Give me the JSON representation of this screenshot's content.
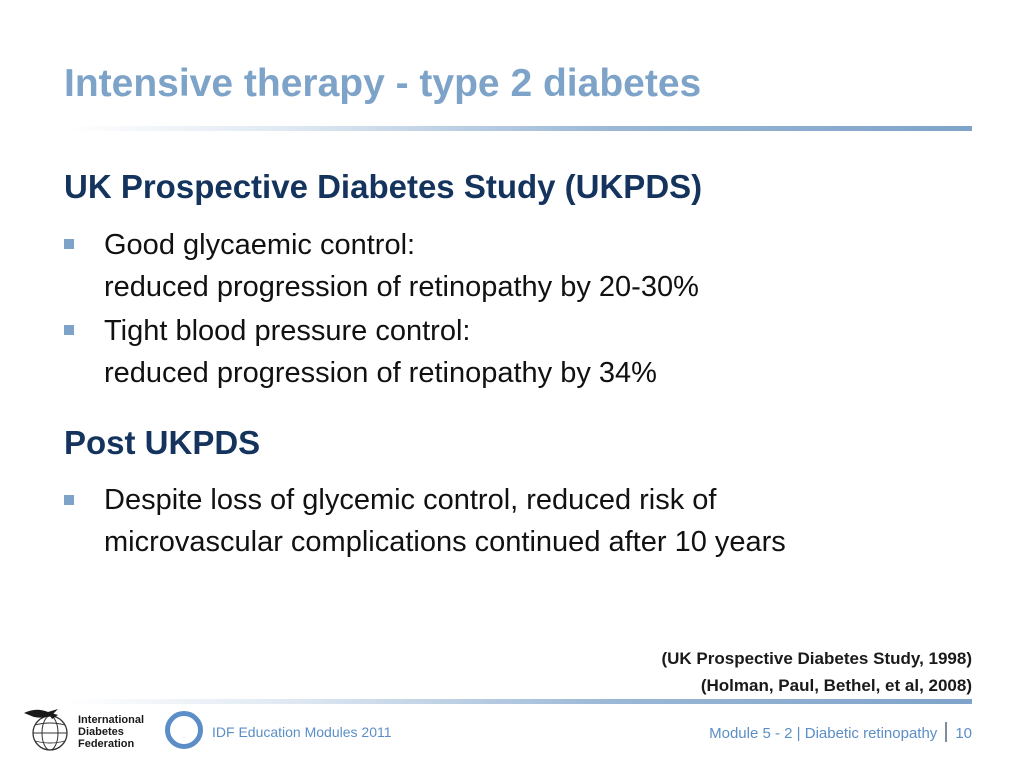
{
  "slide": {
    "title": "Intensive therapy - type 2 diabetes"
  },
  "sections": [
    {
      "heading": "UK Prospective Diabetes Study (UKPDS)",
      "bullets": [
        {
          "line1": "Good glycaemic control:",
          "line2": "reduced progression of retinopathy by 20-30%"
        },
        {
          "line1": "Tight blood pressure control:",
          "line2": "reduced progression of retinopathy by 34%"
        }
      ]
    },
    {
      "heading": "Post UKPDS",
      "bullets": [
        {
          "line1": "Despite loss of glycemic control, reduced risk of",
          "line2": "microvascular complications continued after 10 years"
        }
      ]
    }
  ],
  "references": [
    "(UK Prospective Diabetes Study, 1998)",
    "(Holman, Paul, Bethel, et al, 2008)"
  ],
  "footer": {
    "logo_lines": [
      "International",
      "Diabetes",
      "Federation"
    ],
    "left_text": "IDF Education Modules 2011",
    "module_text": "Module 5 - 2 | Diabetic retinopathy",
    "page_number": "10"
  },
  "colors": {
    "title": "#7ea3c9",
    "heading": "#14345e",
    "accent": "#5b8ec6",
    "bullet": "#7ea3c9"
  },
  "icons": [
    "idf-logo-icon",
    "square-bullet-icon",
    "blue-ring-icon"
  ]
}
